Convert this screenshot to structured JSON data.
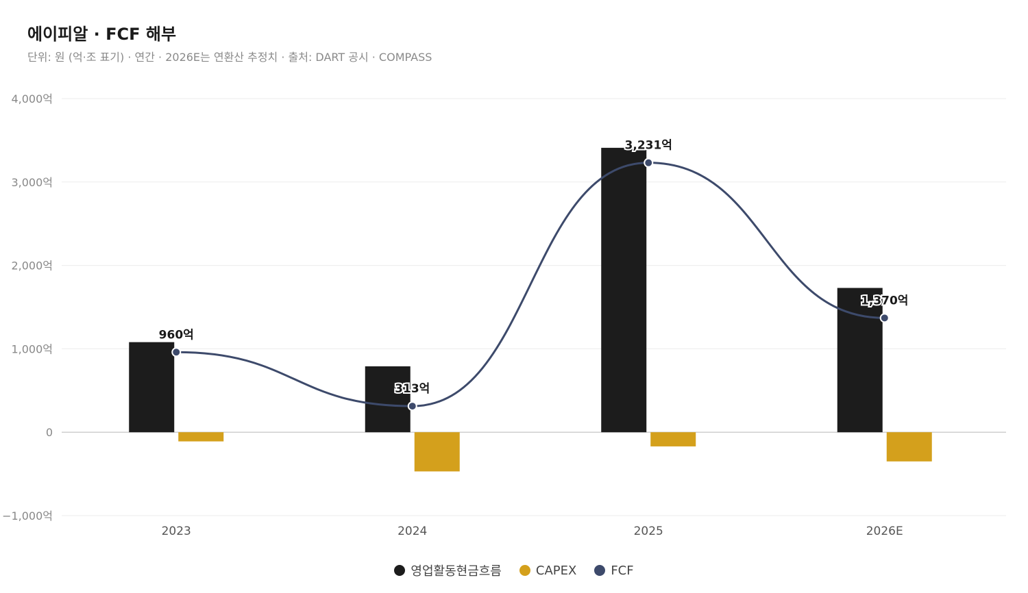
{
  "header": {
    "title": "에이피알 · FCF 해부",
    "subtitle": "단위: 원 (억·조 표기) · 연간 · 2026E는 연환산 추정치 · 출처: DART 공시 · COMPASS"
  },
  "colors": {
    "operating": "#1c1c1c",
    "capex": "#d4a01c",
    "fcf": "#3d4a6b",
    "grid": "#ebebeb",
    "zero_line": "#cfcfcf",
    "axis_text": "#888888"
  },
  "chart_data": {
    "type": "bar",
    "categories": [
      "2023",
      "2024",
      "2025",
      "2026E"
    ],
    "ylim": [
      -1000,
      4000
    ],
    "yticks": [
      4000,
      3000,
      2000,
      1000,
      0,
      -1000
    ],
    "ytick_labels": [
      "4,000억",
      "3,000억",
      "2,000억",
      "1,000억",
      "0",
      "−1,000억"
    ],
    "series": [
      {
        "name": "영업활동현금흐름",
        "kind": "bar",
        "values": [
          1080,
          790,
          3410,
          1730
        ]
      },
      {
        "name": "CAPEX",
        "kind": "bar",
        "values": [
          -110,
          -470,
          -170,
          -350
        ]
      },
      {
        "name": "FCF",
        "kind": "line",
        "values": [
          960,
          313,
          3231,
          1370
        ],
        "data_labels": [
          "960억",
          "313억",
          "3,231억",
          "1,370억"
        ]
      }
    ],
    "legend_position": "bottom-center",
    "grid": true
  }
}
